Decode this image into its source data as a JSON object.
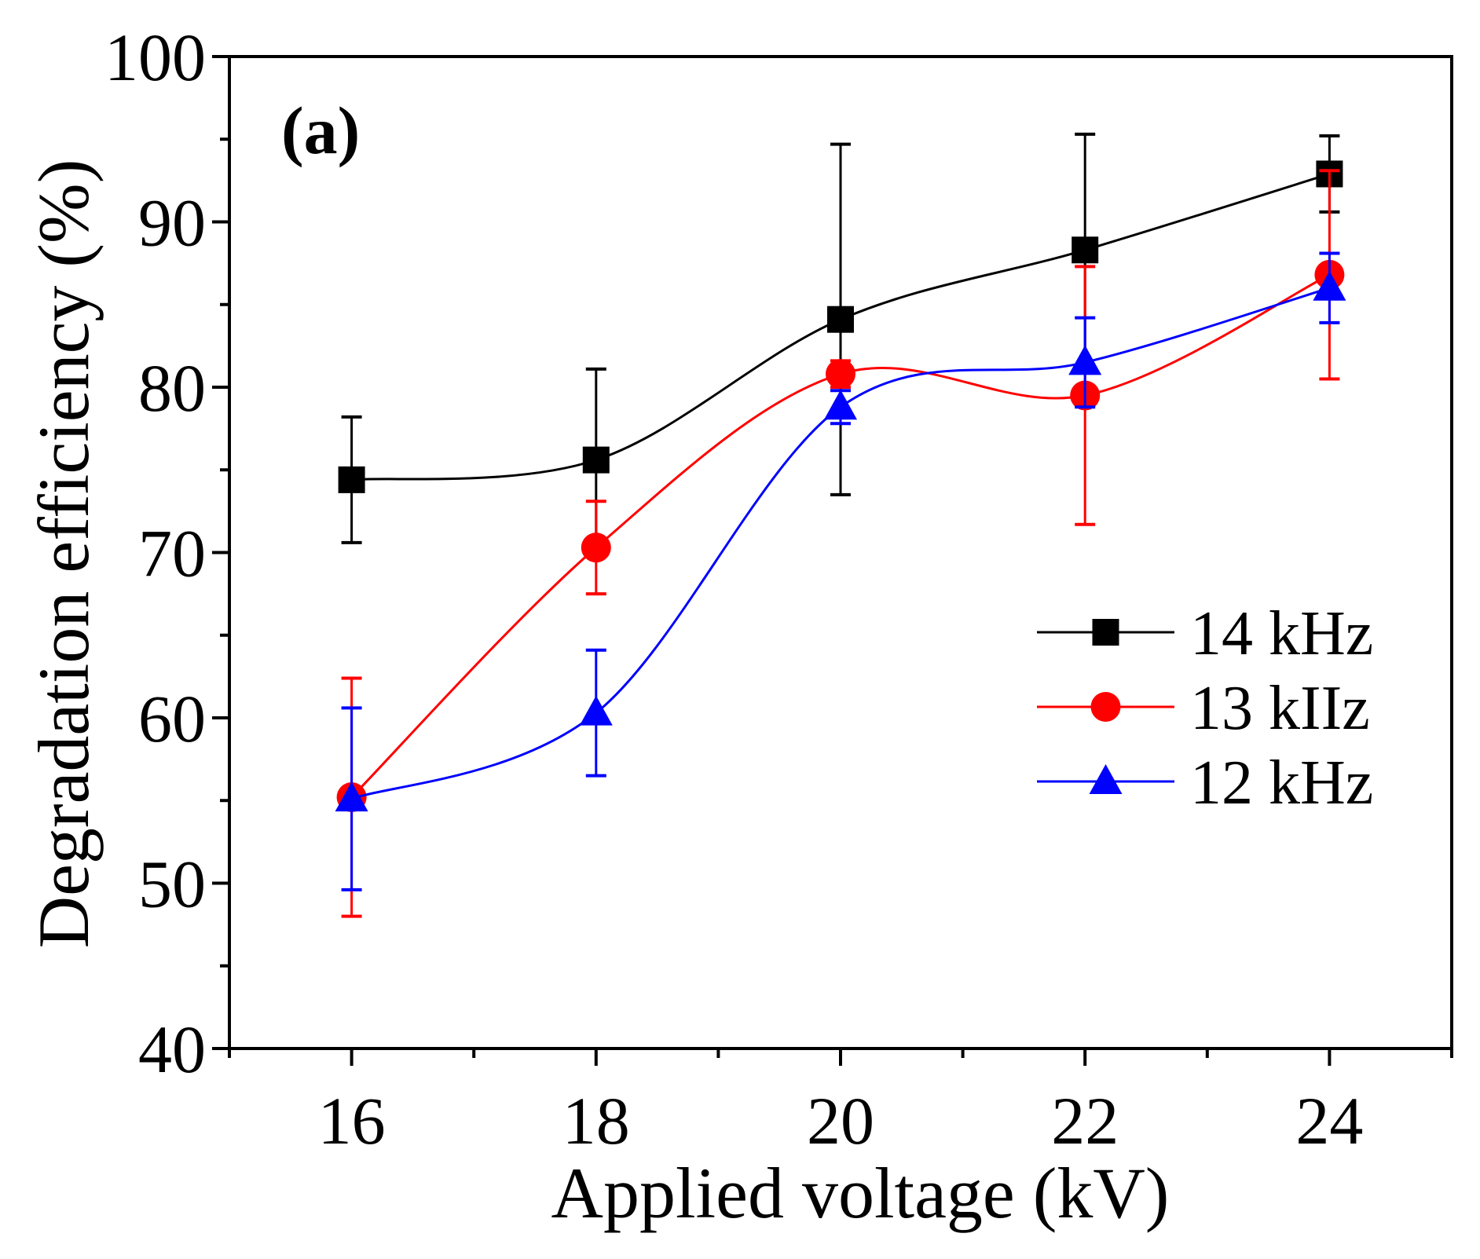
{
  "chart_data": {
    "type": "line",
    "panel_label": "(a)",
    "xlabel": "Applied voltage (kV)",
    "ylabel": "Degradation efficiency (%)",
    "xlim": [
      15,
      25
    ],
    "ylim": [
      40,
      100
    ],
    "x": [
      16,
      18,
      20,
      22,
      24
    ],
    "x_tick_labels": [
      "16",
      "18",
      "20",
      "22",
      "24"
    ],
    "y_ticks": [
      40,
      50,
      60,
      70,
      80,
      90,
      100
    ],
    "y_tick_labels": [
      "40",
      "50",
      "60",
      "70",
      "80",
      "90",
      "100"
    ],
    "legend_position": "center-right",
    "series": [
      {
        "name": "14 kHz",
        "color": "#000000",
        "marker": "square",
        "values": [
          74.4,
          75.6,
          84.1,
          88.3,
          92.9
        ],
        "errors": [
          3.8,
          5.5,
          10.6,
          7.0,
          2.3
        ]
      },
      {
        "name": "13 kIIz",
        "color": "#ff0000",
        "marker": "circle",
        "values": [
          55.2,
          70.3,
          80.8,
          79.5,
          86.8
        ],
        "errors": [
          7.2,
          2.8,
          0.8,
          7.8,
          6.3
        ]
      },
      {
        "name": "12 kHz",
        "color": "#0000ff",
        "marker": "triangle",
        "values": [
          55.1,
          60.3,
          78.8,
          81.5,
          86.0
        ],
        "errors": [
          5.5,
          3.8,
          1.0,
          2.7,
          2.1
        ]
      }
    ]
  }
}
